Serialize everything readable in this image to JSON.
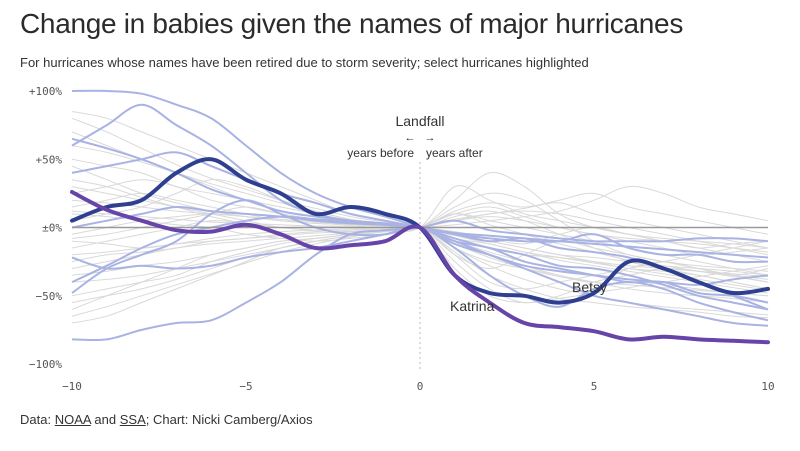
{
  "title": "Change in babies given the names of major hurricanes",
  "subtitle": "For hurricanes whose names have been retired due to storm severity; select hurricanes highlighted",
  "source": {
    "prefix": "Data: ",
    "link1": "NOAA",
    "and": " and ",
    "link2": "SSA",
    "suffix": "; Chart: Nicki Camberg/Axios"
  },
  "colors": {
    "background_line": "#d9d9d9",
    "highlight_light": "#a9b3e3",
    "betsy": "#2e3f8f",
    "katrina": "#6744a8",
    "zero_line": "#999999",
    "landfall_line": "#bbbbbb"
  },
  "chart_data": {
    "type": "line",
    "title": "Change in babies given the names of major hurricanes",
    "xlabel": "",
    "ylabel": "",
    "xlim": [
      -10,
      10
    ],
    "ylim": [
      -100,
      100
    ],
    "x_ticks": [
      -10,
      -5,
      0,
      5,
      10
    ],
    "x_tick_labels": [
      "−10",
      "−5",
      "0",
      "5",
      "10"
    ],
    "y_ticks": [
      100,
      50,
      0,
      -50,
      -100
    ],
    "y_tick_labels": [
      "+100%",
      "+50%",
      "±0%",
      "−50%",
      "−100%"
    ],
    "grid": false,
    "annotations": {
      "landfall": "Landfall",
      "arrow_left": "←",
      "arrow_right": "→",
      "years_before": "years before",
      "years_after": "years after"
    },
    "x": [
      -10,
      -9,
      -8,
      -7,
      -6,
      -5,
      -4,
      -3,
      -2,
      -1,
      0,
      1,
      2,
      3,
      4,
      5,
      6,
      7,
      8,
      9,
      10
    ],
    "highlighted_series": [
      {
        "name": "Betsy",
        "values": [
          5,
          15,
          20,
          40,
          50,
          35,
          25,
          10,
          15,
          10,
          0,
          -35,
          -48,
          -50,
          -55,
          -48,
          -25,
          -30,
          -40,
          -48,
          -45
        ]
      },
      {
        "name": "Katrina",
        "values": [
          26,
          13,
          5,
          -2,
          -3,
          2,
          -5,
          -15,
          -13,
          -10,
          0,
          -35,
          -55,
          -70,
          -73,
          -76,
          -82,
          -80,
          -82,
          -83,
          -84
        ]
      }
    ],
    "context_series": [
      {
        "values": [
          65,
          58,
          50,
          40,
          28,
          20,
          12,
          8,
          5,
          3,
          0,
          -8,
          -15,
          -20,
          -28,
          -30,
          -35,
          -42,
          -50,
          -55,
          -60
        ]
      },
      {
        "values": [
          60,
          75,
          90,
          75,
          60,
          40,
          20,
          10,
          5,
          2,
          0,
          -5,
          -10,
          -8,
          -15,
          -18,
          -22,
          -30,
          -40,
          -50,
          -60
        ]
      },
      {
        "values": [
          -48,
          -30,
          -20,
          -10,
          10,
          20,
          10,
          0,
          -5,
          -5,
          0,
          -10,
          -15,
          -25,
          -30,
          -35,
          -40,
          -40,
          -48,
          -50,
          -55
        ]
      },
      {
        "values": [
          -22,
          -30,
          -28,
          -30,
          -28,
          -22,
          -18,
          -15,
          -10,
          -5,
          0,
          -15,
          -35,
          -50,
          -58,
          -45,
          -40,
          -45,
          -55,
          -62,
          -68
        ]
      },
      {
        "values": [
          -82,
          -82,
          -75,
          -70,
          -68,
          -55,
          -40,
          -20,
          -5,
          -2,
          0,
          5,
          -2,
          -5,
          -8,
          -10,
          -10,
          -10,
          -8,
          -8,
          -10
        ]
      },
      {
        "values": [
          40,
          45,
          50,
          55,
          45,
          35,
          25,
          18,
          10,
          5,
          0,
          -5,
          -8,
          -10,
          -10,
          -5,
          -15,
          -20,
          -20,
          -25,
          -25
        ]
      },
      {
        "values": [
          0,
          5,
          10,
          15,
          12,
          10,
          8,
          5,
          3,
          2,
          0,
          -12,
          -20,
          -28,
          -32,
          -35,
          -38,
          -40,
          -42,
          -38,
          -35
        ]
      },
      {
        "values": [
          -40,
          -28,
          -15,
          -5,
          0,
          5,
          8,
          6,
          4,
          2,
          0,
          -4,
          -6,
          -8,
          -10,
          -12,
          -14,
          -16,
          -18,
          -20,
          -22
        ]
      },
      {
        "values": [
          100,
          100,
          98,
          90,
          80,
          60,
          40,
          25,
          15,
          8,
          0,
          -10,
          -20,
          -30,
          -40,
          -50,
          -55,
          -60,
          -65,
          -70,
          -72
        ]
      }
    ],
    "background_series": [
      {
        "values": [
          10,
          8,
          5,
          2,
          0,
          -5,
          -8,
          -10,
          -8,
          -5,
          0,
          10,
          15,
          8,
          0,
          -5,
          -10,
          -15,
          -20,
          -18,
          -15
        ]
      },
      {
        "values": [
          -15,
          -10,
          -5,
          0,
          5,
          3,
          0,
          -2,
          -3,
          -2,
          0,
          20,
          40,
          30,
          10,
          0,
          -5,
          -10,
          -12,
          -15,
          -18
        ]
      },
      {
        "values": [
          30,
          25,
          20,
          15,
          10,
          5,
          0,
          -2,
          -3,
          -2,
          0,
          -15,
          -25,
          -30,
          -35,
          -40,
          -30,
          -25,
          -30,
          -35,
          -40
        ]
      },
      {
        "values": [
          -25,
          -20,
          -18,
          -15,
          -10,
          -8,
          -5,
          -3,
          -2,
          -1,
          0,
          5,
          8,
          5,
          0,
          -5,
          -8,
          -10,
          -15,
          -12,
          -10
        ]
      },
      {
        "values": [
          50,
          45,
          40,
          30,
          25,
          20,
          15,
          10,
          5,
          3,
          0,
          -20,
          -30,
          -20,
          -10,
          -15,
          -20,
          -25,
          -30,
          -35,
          -30
        ]
      },
      {
        "values": [
          -60,
          -50,
          -40,
          -30,
          -20,
          -15,
          -10,
          -8,
          -5,
          -3,
          0,
          15,
          25,
          20,
          5,
          -10,
          -20,
          -25,
          -28,
          -30,
          -32
        ]
      },
      {
        "values": [
          15,
          20,
          25,
          20,
          15,
          10,
          5,
          5,
          3,
          2,
          0,
          -5,
          -10,
          -15,
          -20,
          -25,
          -30,
          -32,
          -35,
          -40,
          -45
        ]
      },
      {
        "values": [
          -5,
          0,
          5,
          8,
          10,
          8,
          5,
          3,
          2,
          1,
          0,
          -8,
          -15,
          -20,
          -22,
          -25,
          -28,
          -30,
          -32,
          -34,
          -36
        ]
      },
      {
        "values": [
          70,
          60,
          50,
          40,
          30,
          20,
          12,
          8,
          4,
          2,
          0,
          -10,
          -18,
          -25,
          -30,
          -35,
          -38,
          -42,
          -45,
          -48,
          -50
        ]
      },
      {
        "values": [
          -35,
          -32,
          -28,
          -25,
          -20,
          -15,
          -10,
          -8,
          -5,
          -3,
          0,
          10,
          5,
          0,
          -5,
          -10,
          -15,
          -20,
          -25,
          -30,
          -35
        ]
      },
      {
        "values": [
          5,
          10,
          15,
          25,
          35,
          30,
          20,
          12,
          6,
          3,
          0,
          -25,
          -45,
          -55,
          -50,
          -40,
          -35,
          -30,
          -32,
          -35,
          -38
        ]
      },
      {
        "values": [
          -10,
          -12,
          -15,
          -12,
          -10,
          -8,
          -6,
          -4,
          -3,
          -2,
          0,
          30,
          20,
          10,
          5,
          0,
          -5,
          -8,
          -10,
          -12,
          -15
        ]
      },
      {
        "values": [
          85,
          80,
          70,
          60,
          50,
          40,
          30,
          20,
          10,
          5,
          0,
          -5,
          -10,
          -15,
          -20,
          -22,
          -25,
          -28,
          -30,
          -32,
          -35
        ]
      },
      {
        "values": [
          -70,
          -65,
          -55,
          -45,
          -35,
          -25,
          -15,
          -10,
          -6,
          -3,
          0,
          5,
          10,
          12,
          10,
          5,
          0,
          -5,
          -10,
          -15,
          -20
        ]
      },
      {
        "values": [
          20,
          18,
          15,
          12,
          10,
          8,
          6,
          4,
          2,
          1,
          0,
          -18,
          -35,
          -45,
          -52,
          -55,
          -58,
          -60,
          -62,
          -65,
          -66
        ]
      },
      {
        "values": [
          -30,
          -25,
          -20,
          -15,
          -12,
          -10,
          -8,
          -6,
          -4,
          -2,
          0,
          12,
          18,
          15,
          20,
          25,
          15,
          10,
          5,
          0,
          -5
        ]
      },
      {
        "values": [
          45,
          35,
          25,
          18,
          12,
          8,
          5,
          3,
          2,
          1,
          0,
          -6,
          -12,
          -18,
          -24,
          -28,
          -32,
          -36,
          -40,
          -44,
          -48
        ]
      },
      {
        "values": [
          -50,
          -45,
          -40,
          -35,
          -25,
          -18,
          -12,
          -8,
          -5,
          -2,
          0,
          -10,
          -20,
          -28,
          -35,
          -40,
          -45,
          -48,
          -50,
          -52,
          -55
        ]
      },
      {
        "values": [
          25,
          30,
          35,
          30,
          20,
          15,
          10,
          6,
          3,
          1,
          0,
          8,
          12,
          5,
          -5,
          -15,
          -25,
          -30,
          -35,
          -40,
          -45
        ]
      },
      {
        "values": [
          -40,
          -38,
          -35,
          -30,
          -25,
          -20,
          -15,
          -10,
          -6,
          -3,
          0,
          -20,
          -40,
          -45,
          -40,
          -35,
          -30,
          -25,
          -20,
          -15,
          -10
        ]
      },
      {
        "values": [
          60,
          55,
          48,
          40,
          32,
          25,
          18,
          12,
          6,
          3,
          0,
          -3,
          -8,
          -12,
          -5,
          0,
          -5,
          -10,
          -15,
          -20,
          -25
        ]
      },
      {
        "values": [
          -8,
          -5,
          0,
          5,
          10,
          15,
          10,
          6,
          3,
          1,
          0,
          -15,
          -28,
          -38,
          -45,
          -50,
          -55,
          -58,
          -60,
          -62,
          -64
        ]
      },
      {
        "values": [
          35,
          30,
          22,
          15,
          8,
          3,
          0,
          -2,
          -3,
          -2,
          0,
          6,
          10,
          14,
          18,
          10,
          5,
          0,
          -5,
          -10,
          -15
        ]
      },
      {
        "values": [
          -55,
          -50,
          -45,
          -38,
          -30,
          -22,
          -15,
          -10,
          -6,
          -3,
          0,
          -8,
          -12,
          -18,
          -22,
          -26,
          -30,
          -34,
          -38,
          -42,
          -46
        ]
      },
      {
        "values": [
          12,
          10,
          8,
          6,
          4,
          3,
          2,
          1,
          1,
          0,
          0,
          -30,
          -50,
          -55,
          -52,
          -48,
          -44,
          -40,
          -36,
          -32,
          -28
        ]
      },
      {
        "values": [
          -20,
          -18,
          -15,
          -12,
          -8,
          -5,
          -3,
          -2,
          -1,
          -1,
          0,
          2,
          5,
          8,
          12,
          20,
          30,
          25,
          15,
          10,
          5
        ]
      },
      {
        "values": [
          80,
          70,
          58,
          46,
          36,
          28,
          20,
          14,
          8,
          4,
          0,
          -12,
          -22,
          -30,
          -36,
          -40,
          -42,
          -44,
          -46,
          -48,
          -50
        ]
      },
      {
        "values": [
          -65,
          -58,
          -50,
          -42,
          -34,
          -26,
          -18,
          -12,
          -7,
          -3,
          0,
          10,
          2,
          -5,
          -12,
          -18,
          -24,
          -28,
          -32,
          -36,
          -40
        ]
      }
    ]
  }
}
